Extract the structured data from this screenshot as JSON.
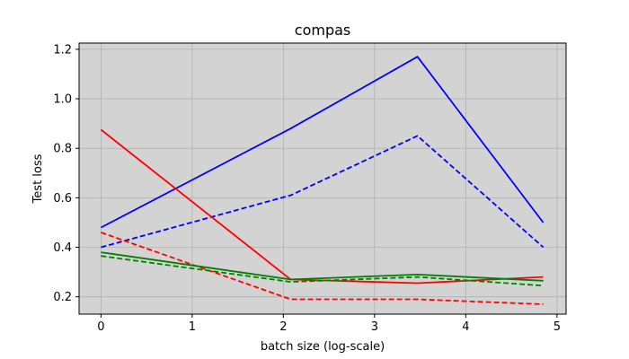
{
  "chart_data": {
    "type": "line",
    "title": "compas",
    "xlabel": "batch size (log-scale)",
    "ylabel": "Test loss",
    "xlim": [
      -0.24,
      5.1
    ],
    "ylim": [
      0.13,
      1.225
    ],
    "xticks": [
      0,
      1,
      2,
      3,
      4,
      5
    ],
    "xtick_labels": [
      "0",
      "1",
      "2",
      "3",
      "4",
      "5"
    ],
    "yticks": [
      0.2,
      0.4,
      0.6,
      0.8,
      1.0,
      1.2
    ],
    "ytick_labels": [
      "0.2",
      "0.4",
      "0.6",
      "0.8",
      "1.0",
      "1.2"
    ],
    "grid": true,
    "background": "#d3d3d3",
    "series": [
      {
        "color": "#0000ff",
        "dash": "solid",
        "x": [
          0,
          2.08,
          3.47,
          4.85
        ],
        "y": [
          0.48,
          0.88,
          1.17,
          0.5
        ]
      },
      {
        "color": "#0000ff",
        "dash": "dashed",
        "x": [
          0,
          2.08,
          3.47,
          4.85
        ],
        "y": [
          0.4,
          0.61,
          0.85,
          0.4
        ]
      },
      {
        "color": "#ff0000",
        "dash": "solid",
        "x": [
          0,
          2.08,
          3.47,
          4.85
        ],
        "y": [
          0.875,
          0.27,
          0.255,
          0.28
        ]
      },
      {
        "color": "#ff0000",
        "dash": "dashed",
        "x": [
          0,
          2.08,
          3.47,
          4.85
        ],
        "y": [
          0.46,
          0.19,
          0.19,
          0.17
        ]
      },
      {
        "color": "#008000",
        "dash": "solid",
        "x": [
          0,
          2.08,
          3.47,
          4.85
        ],
        "y": [
          0.38,
          0.27,
          0.29,
          0.265
        ]
      },
      {
        "color": "#008000",
        "dash": "dashed",
        "x": [
          0,
          2.08,
          3.47,
          4.85
        ],
        "y": [
          0.365,
          0.26,
          0.28,
          0.245
        ]
      }
    ]
  }
}
